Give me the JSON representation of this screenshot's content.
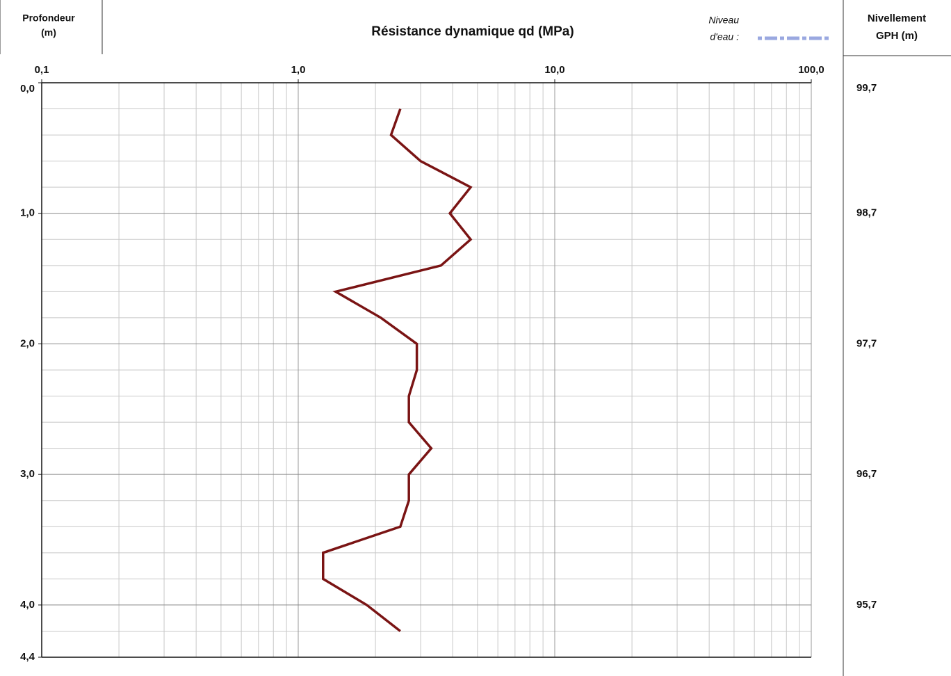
{
  "chart_data": {
    "type": "line",
    "title": "Résistance dynamique qd (MPa)",
    "y_axis_label": [
      "Profondeur",
      "(m)"
    ],
    "y2_axis_label": [
      "Nivellement",
      "GPH (m)"
    ],
    "water_level_label": [
      "Niveau",
      "d'eau :"
    ],
    "water_level_color": "#9aa8e0",
    "color": "#7a1414",
    "log_x": true,
    "grid": true,
    "xlim": [
      0.1,
      100
    ],
    "xticks": [
      {
        "value": 0.1,
        "label": "0,1"
      },
      {
        "value": 1,
        "label": "1,0"
      },
      {
        "value": 10,
        "label": "10,0"
      },
      {
        "value": 100,
        "label": "100,0"
      }
    ],
    "x_minor_ticks": [
      0.2,
      0.3,
      0.4,
      0.5,
      0.6,
      0.7,
      0.8,
      0.9,
      2,
      3,
      4,
      5,
      6,
      7,
      8,
      9,
      20,
      30,
      40,
      50,
      60,
      70,
      80,
      90
    ],
    "ylim": [
      0,
      4.4
    ],
    "yticks": [
      {
        "value": 0,
        "label": "0,0"
      },
      {
        "value": 1,
        "label": "1,0"
      },
      {
        "value": 2,
        "label": "2,0"
      },
      {
        "value": 3,
        "label": "3,0"
      },
      {
        "value": 4,
        "label": "4,0"
      },
      {
        "value": 4.4,
        "label": "4,4"
      }
    ],
    "y_minor_ticks": [
      0.2,
      0.4,
      0.6,
      0.8,
      1.2,
      1.4,
      1.6,
      1.8,
      2.2,
      2.4,
      2.6,
      2.8,
      3.2,
      3.4,
      3.6,
      3.8,
      4.2
    ],
    "y2ticks": [
      {
        "value": 0,
        "label": "99,7"
      },
      {
        "value": 1,
        "label": "98,7"
      },
      {
        "value": 2,
        "label": "97,7"
      },
      {
        "value": 3,
        "label": "96,7"
      },
      {
        "value": 4,
        "label": "95,7"
      }
    ],
    "depths": [
      0.2,
      0.4,
      0.6,
      0.8,
      1.0,
      1.2,
      1.4,
      1.6,
      1.8,
      2.0,
      2.2,
      2.4,
      2.6,
      2.8,
      3.0,
      3.2,
      3.4,
      3.6,
      3.8,
      4.0,
      4.2
    ],
    "values": [
      2.5,
      2.3,
      3.0,
      4.7,
      3.9,
      4.7,
      3.6,
      1.4,
      2.1,
      2.9,
      2.9,
      2.7,
      2.7,
      3.3,
      2.7,
      2.7,
      2.5,
      1.25,
      1.25,
      1.85,
      2.5
    ]
  }
}
